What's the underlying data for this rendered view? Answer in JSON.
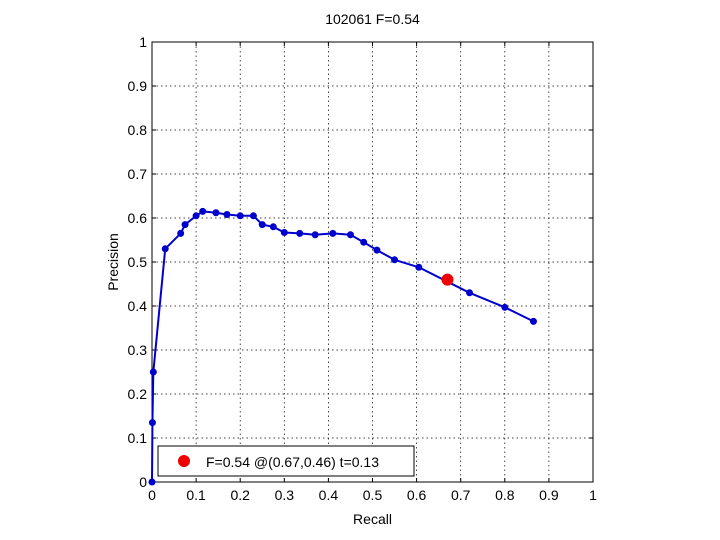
{
  "chart_data": {
    "type": "line",
    "title": "102061 F=0.54",
    "xlabel": "Recall",
    "ylabel": "Precision",
    "xlim": [
      0,
      1
    ],
    "ylim": [
      0,
      1
    ],
    "grid": true,
    "legend_position": "bottom-left",
    "xticks": [
      0,
      0.1,
      0.2,
      0.3,
      0.4,
      0.5,
      0.6,
      0.7,
      0.8,
      0.9,
      1
    ],
    "yticks": [
      0,
      0.1,
      0.2,
      0.3,
      0.4,
      0.5,
      0.6,
      0.7,
      0.8,
      0.9,
      1
    ],
    "xtick_labels": [
      "0",
      "0.1",
      "0.2",
      "0.3",
      "0.4",
      "0.5",
      "0.6",
      "0.7",
      "0.8",
      "0.9",
      "1"
    ],
    "ytick_labels": [
      "0",
      "0.1",
      "0.2",
      "0.3",
      "0.4",
      "0.5",
      "0.6",
      "0.7",
      "0.8",
      "0.9",
      "1"
    ],
    "series": [
      {
        "color": "#0000cc",
        "x": [
          0.0,
          0.001,
          0.003,
          0.03,
          0.065,
          0.075,
          0.1,
          0.115,
          0.145,
          0.17,
          0.2,
          0.23,
          0.25,
          0.275,
          0.3,
          0.335,
          0.37,
          0.41,
          0.45,
          0.48,
          0.51,
          0.55,
          0.605,
          0.72,
          0.8,
          0.865
        ],
        "y": [
          0.0,
          0.135,
          0.25,
          0.53,
          0.565,
          0.585,
          0.605,
          0.615,
          0.612,
          0.608,
          0.605,
          0.605,
          0.585,
          0.58,
          0.567,
          0.565,
          0.562,
          0.565,
          0.562,
          0.545,
          0.527,
          0.505,
          0.488,
          0.43,
          0.397,
          0.365
        ]
      }
    ],
    "highlight": {
      "color": "#ee0000",
      "x": 0.67,
      "y": 0.46,
      "label": "F=0.54 @(0.67,0.46) t=0.13"
    }
  }
}
